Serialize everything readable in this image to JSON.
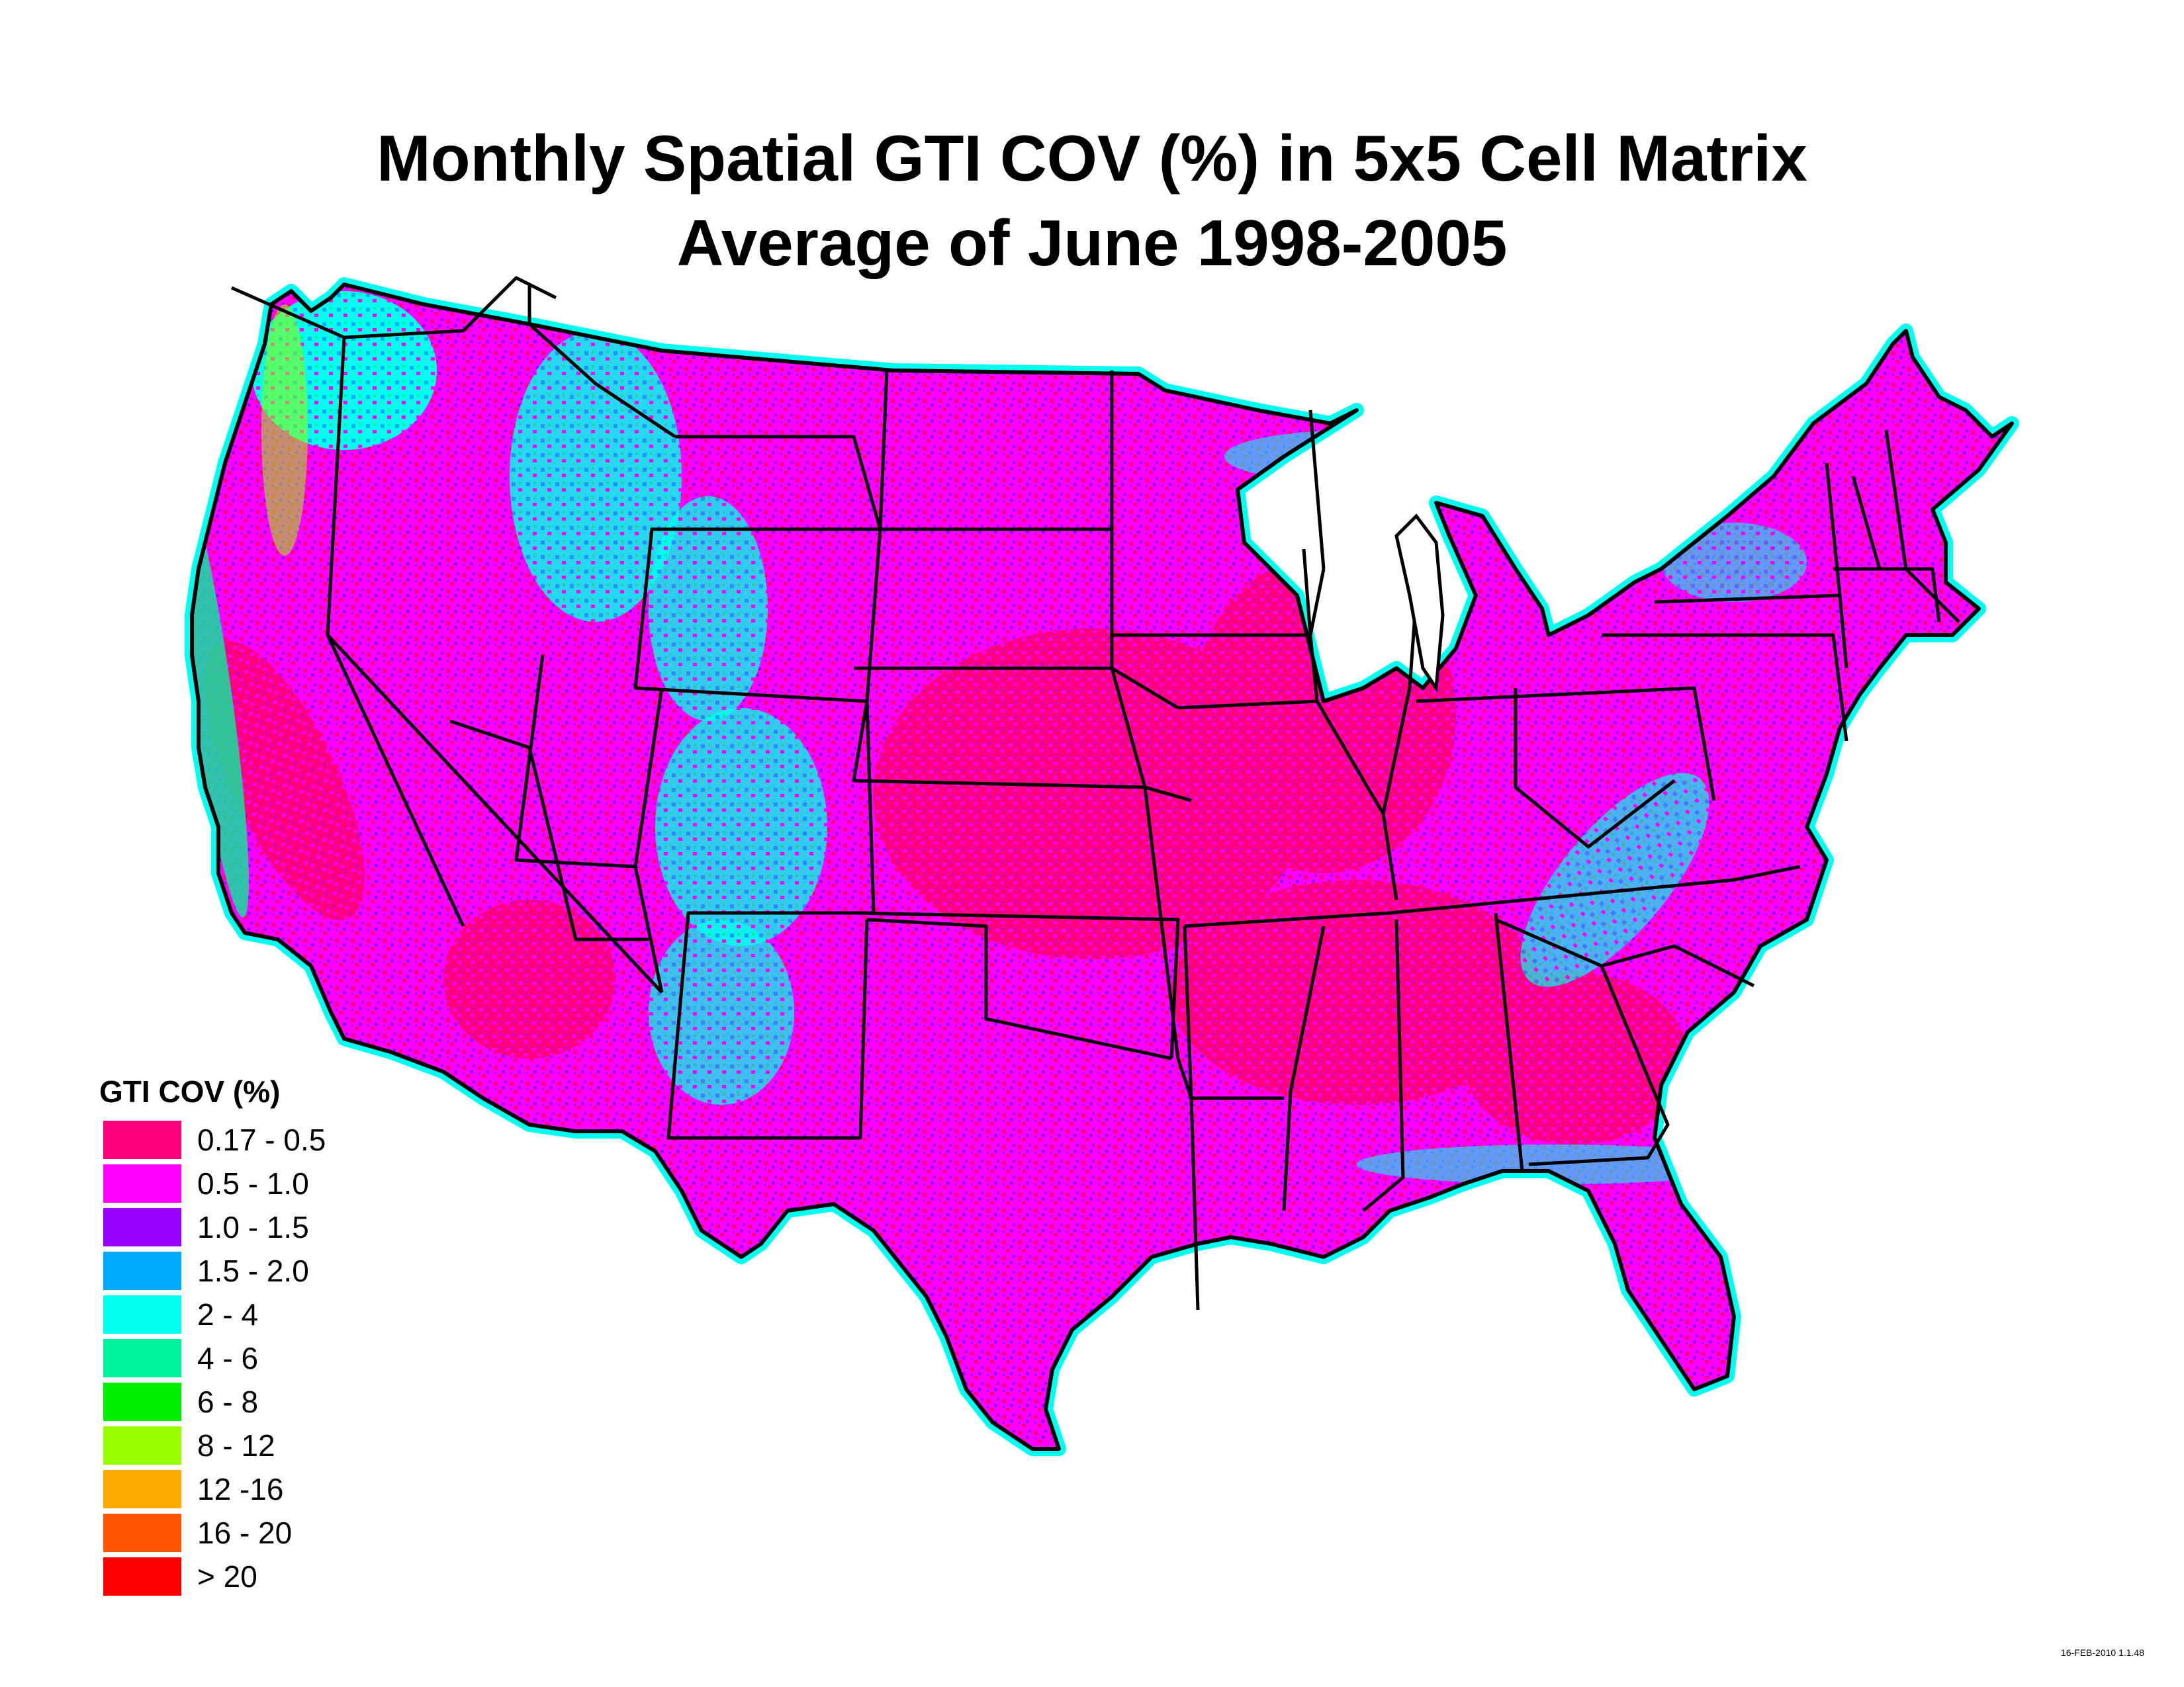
{
  "title": {
    "line1": "Monthly Spatial GTI COV (%) in 5x5 Cell Matrix",
    "line2": "Average of June 1998-2005"
  },
  "legend": {
    "title": "GTI COV (%)",
    "items": [
      {
        "label": "0.17 - 0.5",
        "color": "#ff0080"
      },
      {
        "label": "0.5 - 1.0",
        "color": "#ff00ff"
      },
      {
        "label": "1.0 - 1.5",
        "color": "#9900ff"
      },
      {
        "label": "1.5 - 2.0",
        "color": "#00aaff"
      },
      {
        "label": "2 - 4",
        "color": "#00ffee"
      },
      {
        "label": "4 - 6",
        "color": "#00f29a"
      },
      {
        "label": "6 - 8",
        "color": "#00ee00"
      },
      {
        "label": "8 - 12",
        "color": "#99ff00"
      },
      {
        "label": "12 -16",
        "color": "#ffaa00"
      },
      {
        "label": "16 - 20",
        "color": "#ff5500"
      },
      {
        "label": "> 20",
        "color": "#ff0000"
      }
    ]
  },
  "timestamp": "16-FEB-2010 1.1.48",
  "map": {
    "region": "Contiguous United States",
    "dominant_class_colors": [
      "#ff0080",
      "#ff00ff",
      "#9900ff"
    ],
    "coastal_mountain_class_colors": [
      "#00aaff",
      "#00ffee",
      "#00f29a",
      "#99ff00"
    ],
    "border_color": "#000000"
  }
}
